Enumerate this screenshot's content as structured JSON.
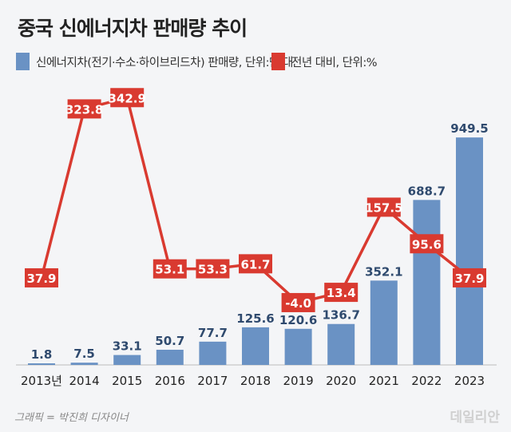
{
  "title": "중국 신에너지차 판매량 추이",
  "chart_data": {
    "type": "bar+line",
    "title": "중국 신에너지차 판매량 추이",
    "categories": [
      "2013년",
      "2014",
      "2015",
      "2016",
      "2017",
      "2018",
      "2019",
      "2020",
      "2021",
      "2022",
      "2023"
    ],
    "series": [
      {
        "name": "신에너지차(전기·수소·하이브리드차) 판매량, 단위:만 대",
        "type": "bar",
        "color": "#6a92c4",
        "values": [
          1.8,
          7.5,
          33.1,
          50.7,
          77.7,
          125.6,
          120.6,
          136.7,
          352.1,
          688.7,
          949.5
        ]
      },
      {
        "name": "전년 대비, 단위:%",
        "type": "line",
        "color": "#d93a30",
        "values": [
          37.9,
          323.8,
          342.9,
          53.1,
          53.3,
          61.7,
          -4.0,
          13.4,
          157.5,
          95.6,
          37.9
        ]
      }
    ],
    "grid": false
  },
  "credit": "그래픽 = 박진희 디자이너",
  "logo": "데일리안"
}
